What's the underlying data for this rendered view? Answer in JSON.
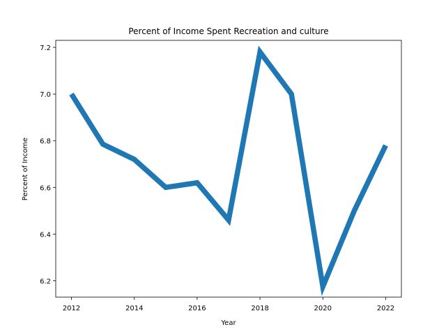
{
  "chart_data": {
    "type": "line",
    "title": "Percent of Income Spent Recreation and culture",
    "xlabel": "Year",
    "ylabel": "Percent of Income",
    "x": [
      2012,
      2013,
      2014,
      2015,
      2016,
      2017,
      2018,
      2019,
      2020,
      2021,
      2022
    ],
    "series": [
      {
        "values": [
          7.0,
          6.785,
          6.72,
          6.6,
          6.62,
          6.46,
          7.18,
          7.0,
          6.175,
          6.5,
          6.78
        ]
      }
    ],
    "xlim": [
      2011.5,
      2022.5
    ],
    "ylim": [
      6.13,
      7.23
    ],
    "xticks": [
      2012,
      2014,
      2016,
      2018,
      2020,
      2022
    ],
    "xtick_labels": [
      "2012",
      "2014",
      "2016",
      "2018",
      "2020",
      "2022"
    ],
    "yticks": [
      6.2,
      6.4,
      6.6,
      6.8,
      7.0,
      7.2
    ],
    "ytick_labels": [
      "6.2",
      "6.4",
      "6.6",
      "6.8",
      "7.0",
      "7.2"
    ],
    "grid": false,
    "legend": "none",
    "line_color": "#1f77b4"
  }
}
